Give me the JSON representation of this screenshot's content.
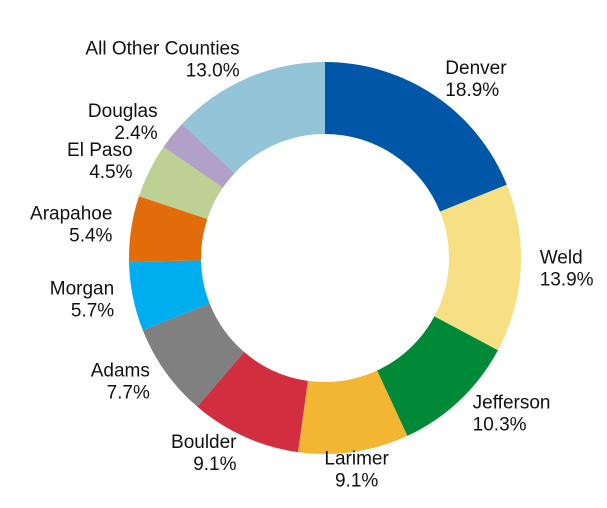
{
  "chart_data": {
    "type": "donut",
    "categories": [
      "Denver",
      "Weld",
      "Jefferson",
      "Larimer",
      "Boulder",
      "Adams",
      "Morgan",
      "Arapahoe",
      "El Paso",
      "Douglas",
      "All Other Counties"
    ],
    "values": [
      18.9,
      13.9,
      10.3,
      9.1,
      9.1,
      7.7,
      5.7,
      5.4,
      4.5,
      2.4,
      13.0
    ],
    "value_labels": [
      "18.9%",
      "13.9%",
      "10.3%",
      "9.1%",
      "9.1%",
      "7.7%",
      "5.7%",
      "5.4%",
      "4.5%",
      "2.4%",
      "13.0%"
    ],
    "colors": [
      "#0057a8",
      "#f6e083",
      "#008a37",
      "#f2b632",
      "#d12e3f",
      "#808080",
      "#00aeef",
      "#e36c0a",
      "#bcd193",
      "#b1a0c7",
      "#93c4d7"
    ]
  }
}
